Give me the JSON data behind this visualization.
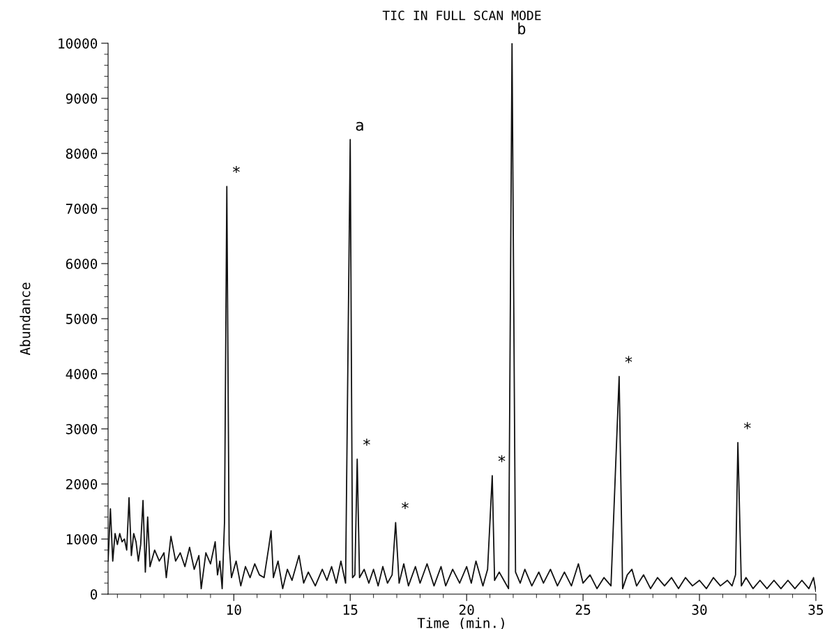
{
  "chart_data": {
    "type": "line",
    "title": "TIC IN FULL SCAN MODE",
    "xlabel": "Time (min.)",
    "ylabel": "Abundance",
    "xlim": [
      4.6,
      35
    ],
    "xticks": [
      10,
      15,
      20,
      25,
      30,
      35
    ],
    "ylim": [
      0,
      10000
    ],
    "yticks": [
      0,
      1000,
      2000,
      3000,
      4000,
      5000,
      6000,
      7000,
      8000,
      9000,
      10000
    ],
    "grid": false,
    "legend": false,
    "marker": "none",
    "line_style": "solid",
    "series": [
      {
        "color": "#111111",
        "x": [
          4.6,
          4.7,
          4.8,
          4.9,
          5.0,
          5.1,
          5.2,
          5.3,
          5.4,
          5.5,
          5.6,
          5.7,
          5.8,
          5.9,
          6.0,
          6.1,
          6.2,
          6.3,
          6.4,
          6.6,
          6.8,
          7.0,
          7.1,
          7.3,
          7.5,
          7.7,
          7.9,
          8.1,
          8.3,
          8.5,
          8.6,
          8.8,
          9.0,
          9.2,
          9.3,
          9.4,
          9.5,
          9.6,
          9.7,
          9.8,
          9.9,
          10.1,
          10.3,
          10.5,
          10.7,
          10.9,
          11.1,
          11.3,
          11.5,
          11.6,
          11.7,
          11.9,
          12.1,
          12.3,
          12.5,
          12.8,
          13.0,
          13.2,
          13.5,
          13.8,
          14.0,
          14.2,
          14.4,
          14.6,
          14.8,
          15.0,
          15.1,
          15.2,
          15.3,
          15.4,
          15.6,
          15.8,
          16.0,
          16.2,
          16.4,
          16.6,
          16.8,
          16.95,
          17.1,
          17.3,
          17.5,
          17.8,
          18.0,
          18.3,
          18.6,
          18.9,
          19.1,
          19.4,
          19.7,
          20.0,
          20.2,
          20.4,
          20.7,
          20.9,
          21.1,
          21.2,
          21.4,
          21.6,
          21.8,
          21.95,
          22.1,
          22.3,
          22.5,
          22.8,
          23.1,
          23.3,
          23.6,
          23.9,
          24.2,
          24.5,
          24.8,
          25.0,
          25.3,
          25.6,
          25.9,
          26.2,
          26.55,
          26.7,
          26.9,
          27.1,
          27.3,
          27.6,
          27.9,
          28.2,
          28.5,
          28.8,
          29.1,
          29.4,
          29.7,
          30.0,
          30.3,
          30.6,
          30.9,
          31.2,
          31.4,
          31.55,
          31.65,
          31.8,
          32.0,
          32.3,
          32.6,
          32.9,
          33.2,
          33.5,
          33.8,
          34.1,
          34.4,
          34.7,
          34.9,
          35.0
        ],
        "values": [
          600,
          1550,
          600,
          1100,
          900,
          1100,
          950,
          1000,
          800,
          1750,
          700,
          1100,
          950,
          600,
          900,
          1700,
          400,
          1400,
          500,
          800,
          600,
          750,
          300,
          1050,
          600,
          750,
          500,
          850,
          450,
          700,
          100,
          750,
          550,
          950,
          350,
          600,
          100,
          1300,
          7400,
          900,
          300,
          600,
          150,
          500,
          300,
          550,
          350,
          300,
          850,
          1150,
          300,
          600,
          100,
          450,
          250,
          700,
          200,
          400,
          150,
          450,
          250,
          500,
          200,
          600,
          200,
          8250,
          300,
          350,
          2450,
          300,
          450,
          200,
          450,
          150,
          500,
          200,
          350,
          1300,
          200,
          550,
          150,
          500,
          200,
          550,
          150,
          500,
          150,
          450,
          200,
          500,
          200,
          600,
          150,
          450,
          2150,
          250,
          400,
          250,
          100,
          10000,
          400,
          200,
          450,
          150,
          400,
          200,
          450,
          150,
          400,
          150,
          550,
          200,
          350,
          100,
          300,
          150,
          3950,
          100,
          350,
          450,
          150,
          350,
          100,
          300,
          150,
          300,
          100,
          300,
          150,
          250,
          100,
          300,
          150,
          250,
          150,
          350,
          2750,
          150,
          300,
          100,
          250,
          100,
          250,
          100,
          250,
          100,
          250,
          100,
          300,
          50
        ]
      }
    ],
    "annotations": [
      {
        "text": "*",
        "x": 9.7,
        "y": 7400
      },
      {
        "text": "a",
        "x": 15.0,
        "y": 8250
      },
      {
        "text": "*",
        "x": 15.3,
        "y": 2450
      },
      {
        "text": "*",
        "x": 16.95,
        "y": 1300
      },
      {
        "text": "*",
        "x": 21.1,
        "y": 2150
      },
      {
        "text": "b",
        "x": 21.95,
        "y": 10000
      },
      {
        "text": "*",
        "x": 26.55,
        "y": 3950
      },
      {
        "text": "*",
        "x": 31.65,
        "y": 2750
      }
    ]
  }
}
